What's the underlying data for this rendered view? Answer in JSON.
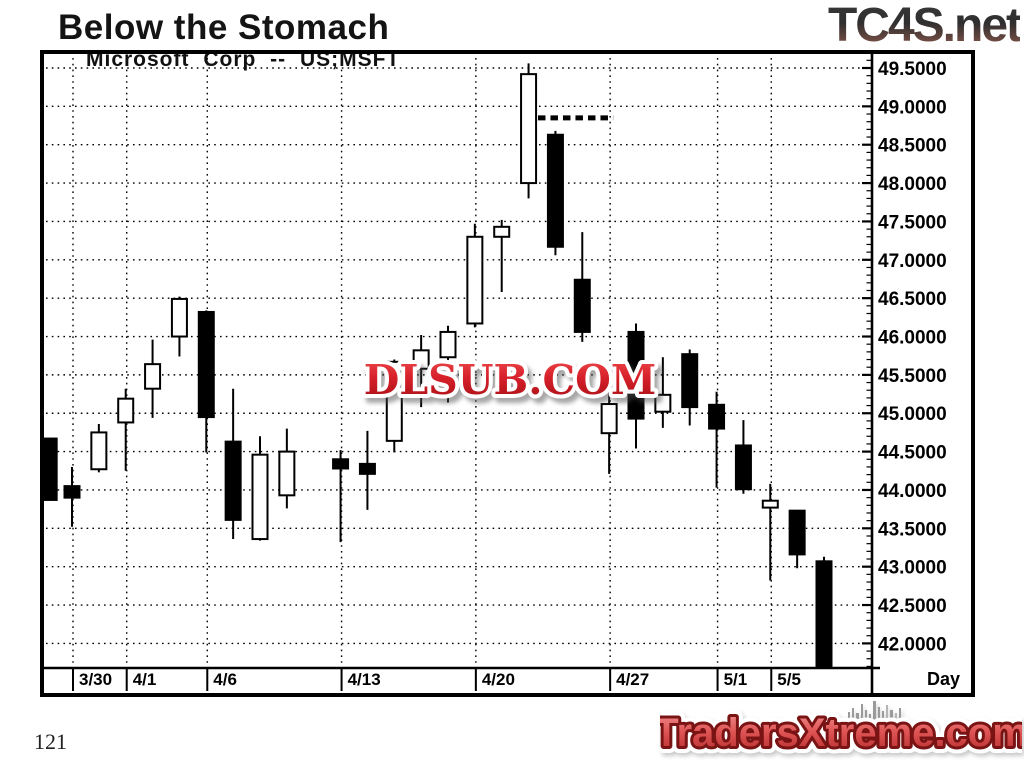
{
  "page": {
    "title": "Below the Stomach",
    "page_number": "121",
    "brand_top_right": "TC4S.net",
    "watermark_center": "DLSUB.COM",
    "watermark_bottom_right": "TradersXtreme.com"
  },
  "chart": {
    "subtitle": "Microsoft Corp -- US;MSFT",
    "x_axis_unit_label": "Day",
    "colors": {
      "up_candle": "#ffffff",
      "down_candle": "#000000",
      "frame": "#000000",
      "watermark_red": "#cc1f26",
      "brand_red": "#c63333"
    }
  },
  "chart_data": {
    "type": "candlestick",
    "title": "Microsoft Corp -- US;MSFT",
    "y_axis": {
      "min": 42.0,
      "max": 49.5,
      "step": 0.5,
      "labels": [
        "49.5000",
        "49.0000",
        "48.5000",
        "48.0000",
        "47.5000",
        "47.0000",
        "46.5000",
        "46.0000",
        "45.5000",
        "45.0000",
        "44.5000",
        "44.0000",
        "43.5000",
        "43.0000",
        "42.5000",
        "42.0000"
      ]
    },
    "x_axis": {
      "unit": "Day",
      "ticks": [
        {
          "label": "3/30",
          "slot": 0
        },
        {
          "label": "4/1",
          "slot": 2
        },
        {
          "label": "4/6",
          "slot": 5
        },
        {
          "label": "4/13",
          "slot": 10
        },
        {
          "label": "4/20",
          "slot": 15
        },
        {
          "label": "4/27",
          "slot": 20
        },
        {
          "label": "5/1",
          "slot": 24
        },
        {
          "label": "5/5",
          "slot": 26
        }
      ]
    },
    "pattern_annotation": {
      "style": "dotted-line",
      "value": 48.85,
      "from_slot": 17.35,
      "to_slot": 20.15
    },
    "candles": [
      {
        "date": "",
        "slot": -0.85,
        "open": 44.67,
        "high": 44.67,
        "low": 43.87,
        "close": 43.87,
        "clipped": true
      },
      {
        "date": "3/30",
        "slot": 0,
        "open": 44.05,
        "high": 44.3,
        "low": 43.52,
        "close": 43.9
      },
      {
        "date": "3/31",
        "slot": 1,
        "open": 44.27,
        "high": 44.86,
        "low": 44.23,
        "close": 44.75
      },
      {
        "date": "4/1",
        "slot": 2,
        "open": 44.88,
        "high": 45.32,
        "low": 44.25,
        "close": 45.19
      },
      {
        "date": "4/2",
        "slot": 3,
        "open": 45.32,
        "high": 45.96,
        "low": 44.94,
        "close": 45.64
      },
      {
        "date": "4/3",
        "slot": 4,
        "open": 46.0,
        "high": 46.52,
        "low": 45.74,
        "close": 46.49
      },
      {
        "date": "4/6",
        "slot": 5,
        "open": 46.32,
        "high": 46.34,
        "low": 44.49,
        "close": 44.95
      },
      {
        "date": "4/7",
        "slot": 6,
        "open": 44.63,
        "high": 45.32,
        "low": 43.36,
        "close": 43.61
      },
      {
        "date": "4/8",
        "slot": 7,
        "open": 43.36,
        "high": 44.7,
        "low": 43.34,
        "close": 44.46
      },
      {
        "date": "4/9",
        "slot": 8,
        "open": 43.93,
        "high": 44.8,
        "low": 43.76,
        "close": 44.5
      },
      {
        "date": "4/13",
        "slot": 10,
        "open": 44.4,
        "high": 44.52,
        "low": 43.32,
        "close": 44.28
      },
      {
        "date": "4/14",
        "slot": 11,
        "open": 44.34,
        "high": 44.77,
        "low": 43.74,
        "close": 44.21
      },
      {
        "date": "4/15",
        "slot": 12,
        "open": 44.64,
        "high": 45.7,
        "low": 44.49,
        "close": 45.67
      },
      {
        "date": "4/16",
        "slot": 13,
        "open": 45.58,
        "high": 46.02,
        "low": 45.08,
        "close": 45.82
      },
      {
        "date": "4/17",
        "slot": 14,
        "open": 45.73,
        "high": 46.14,
        "low": 45.14,
        "close": 46.06
      },
      {
        "date": "4/20",
        "slot": 15,
        "open": 46.17,
        "high": 47.47,
        "low": 46.12,
        "close": 47.3
      },
      {
        "date": "4/21",
        "slot": 16,
        "open": 47.3,
        "high": 47.52,
        "low": 46.58,
        "close": 47.43
      },
      {
        "date": "4/22",
        "slot": 17,
        "open": 48.0,
        "high": 49.56,
        "low": 47.8,
        "close": 49.42
      },
      {
        "date": "4/23",
        "slot": 18,
        "open": 48.63,
        "high": 48.68,
        "low": 47.06,
        "close": 47.17
      },
      {
        "date": "4/24",
        "slot": 19,
        "open": 46.74,
        "high": 47.36,
        "low": 45.93,
        "close": 46.06
      },
      {
        "date": "4/27",
        "slot": 20,
        "open": 44.74,
        "high": 45.55,
        "low": 44.21,
        "close": 45.12
      },
      {
        "date": "4/28",
        "slot": 21,
        "open": 46.06,
        "high": 46.17,
        "low": 44.54,
        "close": 44.93
      },
      {
        "date": "4/29",
        "slot": 22,
        "open": 45.02,
        "high": 45.73,
        "low": 44.81,
        "close": 45.24
      },
      {
        "date": "4/30",
        "slot": 23,
        "open": 45.77,
        "high": 45.83,
        "low": 44.84,
        "close": 45.08
      },
      {
        "date": "5/1",
        "slot": 24,
        "open": 45.11,
        "high": 45.28,
        "low": 44.03,
        "close": 44.8
      },
      {
        "date": "5/4",
        "slot": 25,
        "open": 44.58,
        "high": 44.91,
        "low": 43.95,
        "close": 44.01
      },
      {
        "date": "5/5",
        "slot": 26,
        "open": 43.77,
        "high": 44.08,
        "low": 42.82,
        "close": 43.86
      },
      {
        "date": "5/6",
        "slot": 27,
        "open": 43.73,
        "high": 43.74,
        "low": 42.98,
        "close": 43.16
      },
      {
        "date": "5/7",
        "slot": 28,
        "open": 43.07,
        "high": 43.13,
        "low": 41.68,
        "close": 41.7
      }
    ]
  }
}
